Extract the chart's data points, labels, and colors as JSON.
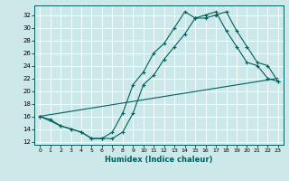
{
  "xlabel": "Humidex (Indice chaleur)",
  "bg_color": "#cde8e8",
  "grid_color": "#ffffff",
  "line_color": "#006060",
  "xlim": [
    -0.5,
    23.5
  ],
  "ylim": [
    11.5,
    33.5
  ],
  "xticks": [
    0,
    1,
    2,
    3,
    4,
    5,
    6,
    7,
    8,
    9,
    10,
    11,
    12,
    13,
    14,
    15,
    16,
    17,
    18,
    19,
    20,
    21,
    22,
    23
  ],
  "yticks": [
    12,
    14,
    16,
    18,
    20,
    22,
    24,
    26,
    28,
    30,
    32
  ],
  "line1_x": [
    0,
    23
  ],
  "line1_y": [
    16,
    22
  ],
  "line2_x": [
    0,
    1,
    2,
    3,
    4,
    5,
    6,
    7,
    8,
    9,
    10,
    11,
    12,
    13,
    14,
    15,
    16,
    17,
    18,
    19,
    20,
    21,
    22,
    23
  ],
  "line2_y": [
    16,
    15.5,
    14.5,
    14.0,
    13.5,
    12.5,
    12.5,
    13.5,
    16.5,
    21.0,
    23.0,
    26.0,
    27.5,
    30.0,
    32.5,
    31.5,
    32.0,
    32.5,
    29.5,
    27.0,
    24.5,
    24.0,
    22.0,
    21.5
  ],
  "line3_x": [
    0,
    2,
    3,
    4,
    5,
    6,
    7,
    8,
    9,
    10,
    11,
    12,
    13,
    14,
    15,
    16,
    17,
    18,
    19,
    20,
    21,
    22,
    23
  ],
  "line3_y": [
    16,
    14.5,
    14.0,
    13.5,
    12.5,
    12.5,
    12.5,
    13.5,
    16.5,
    21.0,
    22.5,
    25.0,
    27.0,
    29.0,
    31.5,
    31.5,
    32.0,
    32.5,
    29.5,
    27.0,
    24.5,
    24.0,
    21.5
  ]
}
